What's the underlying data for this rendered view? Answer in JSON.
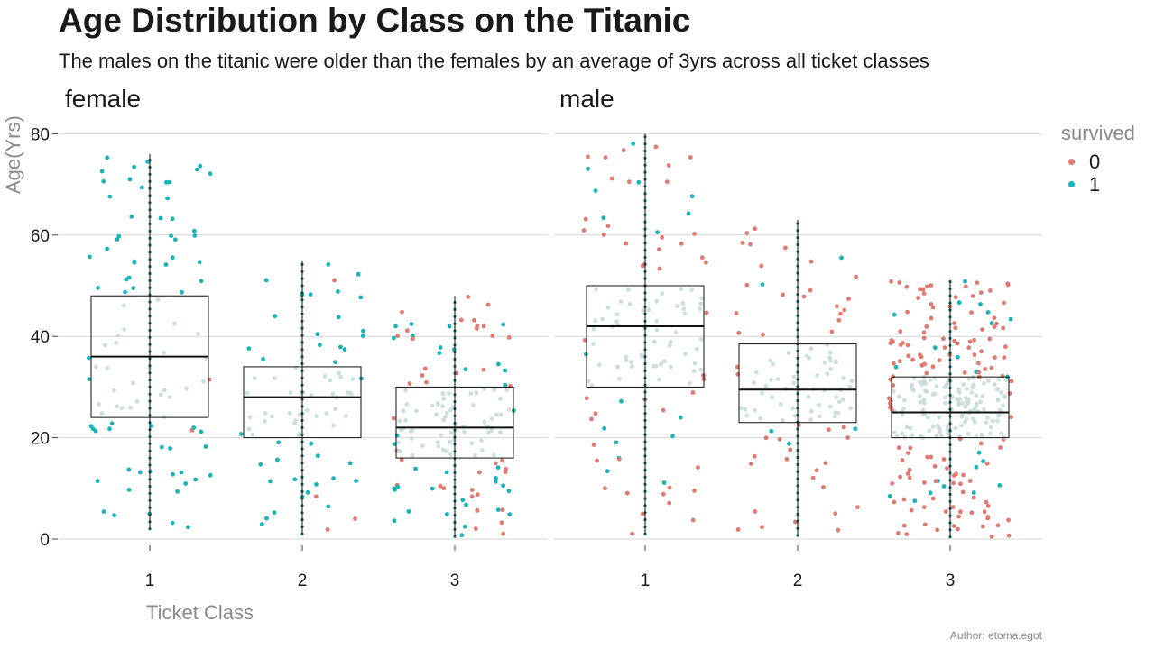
{
  "chart_data": {
    "type": "boxplot",
    "title": "Age Distribution by Class on the Titanic",
    "subtitle": "The males on the titanic were older than the females by an average of 3yrs across all ticket classes",
    "xlabel": "Ticket Class",
    "ylabel": "Age(Yrs)",
    "caption": "Author: etoma.egot",
    "categories": [
      "1",
      "2",
      "3"
    ],
    "y_ticks": [
      "0",
      "20",
      "40",
      "60",
      "80"
    ],
    "ylim": [
      0,
      80
    ],
    "grid": "horizontal",
    "legend": {
      "title": "survived",
      "placement": "right",
      "items": [
        {
          "label": "0",
          "color": "#e07a72"
        },
        {
          "label": "1",
          "color": "#19b4b8"
        }
      ]
    },
    "facets": [
      {
        "label": "female",
        "boxes": [
          {
            "class": "1",
            "min": 2,
            "q1": 24,
            "median": 36,
            "q3": 48,
            "max": 76
          },
          {
            "class": "2",
            "min": 1,
            "q1": 20,
            "median": 28,
            "q3": 34,
            "max": 55
          },
          {
            "class": "3",
            "min": 0.5,
            "q1": 16,
            "median": 22,
            "q3": 30,
            "max": 48
          }
        ]
      },
      {
        "label": "male",
        "boxes": [
          {
            "class": "1",
            "min": 1,
            "q1": 30,
            "median": 42,
            "q3": 50,
            "max": 80
          },
          {
            "class": "2",
            "min": 0.7,
            "q1": 23,
            "median": 29.5,
            "q3": 38.5,
            "max": 63
          },
          {
            "class": "3",
            "min": 0.4,
            "q1": 20,
            "median": 25,
            "q3": 32,
            "max": 51
          }
        ]
      }
    ]
  }
}
